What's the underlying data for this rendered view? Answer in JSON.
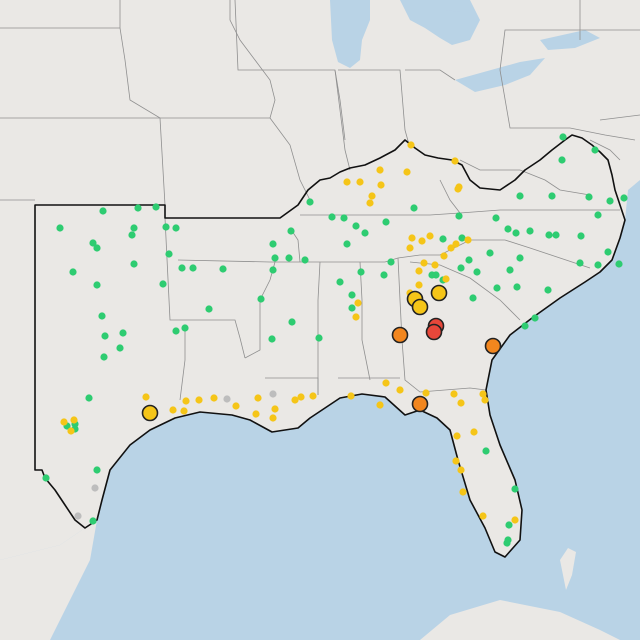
{
  "map": {
    "colors": {
      "land": "#eae8e5",
      "water": "#b9d3e6",
      "state_border": "#8f8f8f",
      "region_border": "#111111",
      "marker_good": "#2ecc71",
      "marker_moderate": "#f5c518",
      "marker_usg": "#f2861e",
      "marker_unhealthy": "#e8473a",
      "marker_nodata": "#bdbdbd",
      "marker_outline": "#222222"
    },
    "legend": [],
    "markers_small_green": [
      [
        563,
        137
      ],
      [
        595,
        150
      ],
      [
        562,
        160
      ],
      [
        520,
        196
      ],
      [
        552,
        196
      ],
      [
        598,
        215
      ],
      [
        610,
        201
      ],
      [
        624,
        198
      ],
      [
        589,
        197
      ],
      [
        103,
        211
      ],
      [
        138,
        208
      ],
      [
        156,
        207
      ],
      [
        60,
        228
      ],
      [
        134,
        228
      ],
      [
        93,
        243
      ],
      [
        97,
        248
      ],
      [
        132,
        235
      ],
      [
        166,
        227
      ],
      [
        176,
        228
      ],
      [
        310,
        202
      ],
      [
        332,
        217
      ],
      [
        344,
        218
      ],
      [
        356,
        226
      ],
      [
        386,
        222
      ],
      [
        414,
        208
      ],
      [
        459,
        216
      ],
      [
        496,
        218
      ],
      [
        508,
        229
      ],
      [
        516,
        233
      ],
      [
        530,
        231
      ],
      [
        549,
        235
      ],
      [
        556,
        235
      ],
      [
        581,
        236
      ],
      [
        580,
        263
      ],
      [
        608,
        252
      ],
      [
        619,
        264
      ],
      [
        598,
        265
      ],
      [
        291,
        231
      ],
      [
        273,
        244
      ],
      [
        275,
        258
      ],
      [
        289,
        258
      ],
      [
        273,
        270
      ],
      [
        347,
        244
      ],
      [
        365,
        233
      ],
      [
        391,
        262
      ],
      [
        443,
        239
      ],
      [
        462,
        238
      ],
      [
        469,
        260
      ],
      [
        490,
        253
      ],
      [
        520,
        258
      ],
      [
        510,
        270
      ],
      [
        436,
        275
      ],
      [
        461,
        268
      ],
      [
        477,
        272
      ],
      [
        432,
        275
      ],
      [
        443,
        280
      ],
      [
        517,
        287
      ],
      [
        548,
        290
      ],
      [
        473,
        298
      ],
      [
        497,
        288
      ],
      [
        535,
        318
      ],
      [
        525,
        326
      ],
      [
        73,
        272
      ],
      [
        97,
        285
      ],
      [
        134,
        264
      ],
      [
        169,
        254
      ],
      [
        182,
        268
      ],
      [
        193,
        268
      ],
      [
        223,
        269
      ],
      [
        163,
        284
      ],
      [
        261,
        299
      ],
      [
        209,
        309
      ],
      [
        102,
        316
      ],
      [
        123,
        333
      ],
      [
        105,
        336
      ],
      [
        120,
        348
      ],
      [
        176,
        331
      ],
      [
        185,
        328
      ],
      [
        104,
        357
      ],
      [
        272,
        339
      ],
      [
        292,
        322
      ],
      [
        319,
        338
      ],
      [
        305,
        260
      ],
      [
        340,
        282
      ],
      [
        361,
        272
      ],
      [
        384,
        275
      ],
      [
        352,
        295
      ],
      [
        352,
        308
      ],
      [
        89,
        398
      ],
      [
        97,
        470
      ],
      [
        46,
        478
      ],
      [
        93,
        521
      ],
      [
        67,
        426
      ],
      [
        75,
        424
      ],
      [
        75,
        429
      ],
      [
        486,
        451
      ],
      [
        515,
        489
      ],
      [
        509,
        525
      ],
      [
        508,
        540
      ],
      [
        507,
        543
      ]
    ],
    "markers_small_yellow": [
      [
        411,
        145
      ],
      [
        455,
        161
      ],
      [
        407,
        172
      ],
      [
        347,
        182
      ],
      [
        380,
        170
      ],
      [
        381,
        185
      ],
      [
        459,
        187
      ],
      [
        412,
        238
      ],
      [
        430,
        236
      ],
      [
        422,
        241
      ],
      [
        410,
        248
      ],
      [
        424,
        263
      ],
      [
        444,
        256
      ],
      [
        451,
        248
      ],
      [
        456,
        244
      ],
      [
        468,
        240
      ],
      [
        446,
        279
      ],
      [
        419,
        271
      ],
      [
        419,
        285
      ],
      [
        410,
        293
      ],
      [
        435,
        265
      ],
      [
        360,
        182
      ],
      [
        458,
        189
      ],
      [
        146,
        397
      ],
      [
        186,
        401
      ],
      [
        199,
        400
      ],
      [
        173,
        410
      ],
      [
        184,
        411
      ],
      [
        214,
        398
      ],
      [
        258,
        398
      ],
      [
        236,
        406
      ],
      [
        256,
        414
      ],
      [
        275,
        409
      ],
      [
        273,
        418
      ],
      [
        295,
        400
      ],
      [
        301,
        397
      ],
      [
        313,
        396
      ],
      [
        351,
        396
      ],
      [
        386,
        383
      ],
      [
        380,
        405
      ],
      [
        400,
        390
      ],
      [
        426,
        393
      ],
      [
        454,
        394
      ],
      [
        461,
        403
      ],
      [
        483,
        394
      ],
      [
        485,
        400
      ],
      [
        457,
        436
      ],
      [
        474,
        432
      ],
      [
        456,
        461
      ],
      [
        461,
        470
      ],
      [
        463,
        492
      ],
      [
        483,
        516
      ],
      [
        515,
        520
      ],
      [
        358,
        303
      ],
      [
        356,
        317
      ],
      [
        372,
        196
      ],
      [
        370,
        203
      ],
      [
        64,
        422
      ],
      [
        74,
        420
      ],
      [
        71,
        431
      ]
    ],
    "markers_small_gray": [
      [
        227,
        399
      ],
      [
        273,
        394
      ],
      [
        78,
        516
      ],
      [
        95,
        488
      ]
    ],
    "markers_large": [
      {
        "x": 150,
        "y": 413,
        "level": "moderate"
      },
      {
        "x": 415,
        "y": 299,
        "level": "moderate"
      },
      {
        "x": 420,
        "y": 307,
        "level": "moderate"
      },
      {
        "x": 439,
        "y": 293,
        "level": "moderate"
      },
      {
        "x": 436,
        "y": 326,
        "level": "unhealthy"
      },
      {
        "x": 434,
        "y": 332,
        "level": "unhealthy"
      },
      {
        "x": 400,
        "y": 335,
        "level": "usg"
      },
      {
        "x": 493,
        "y": 346,
        "level": "usg"
      },
      {
        "x": 420,
        "y": 404,
        "level": "usg"
      }
    ]
  }
}
